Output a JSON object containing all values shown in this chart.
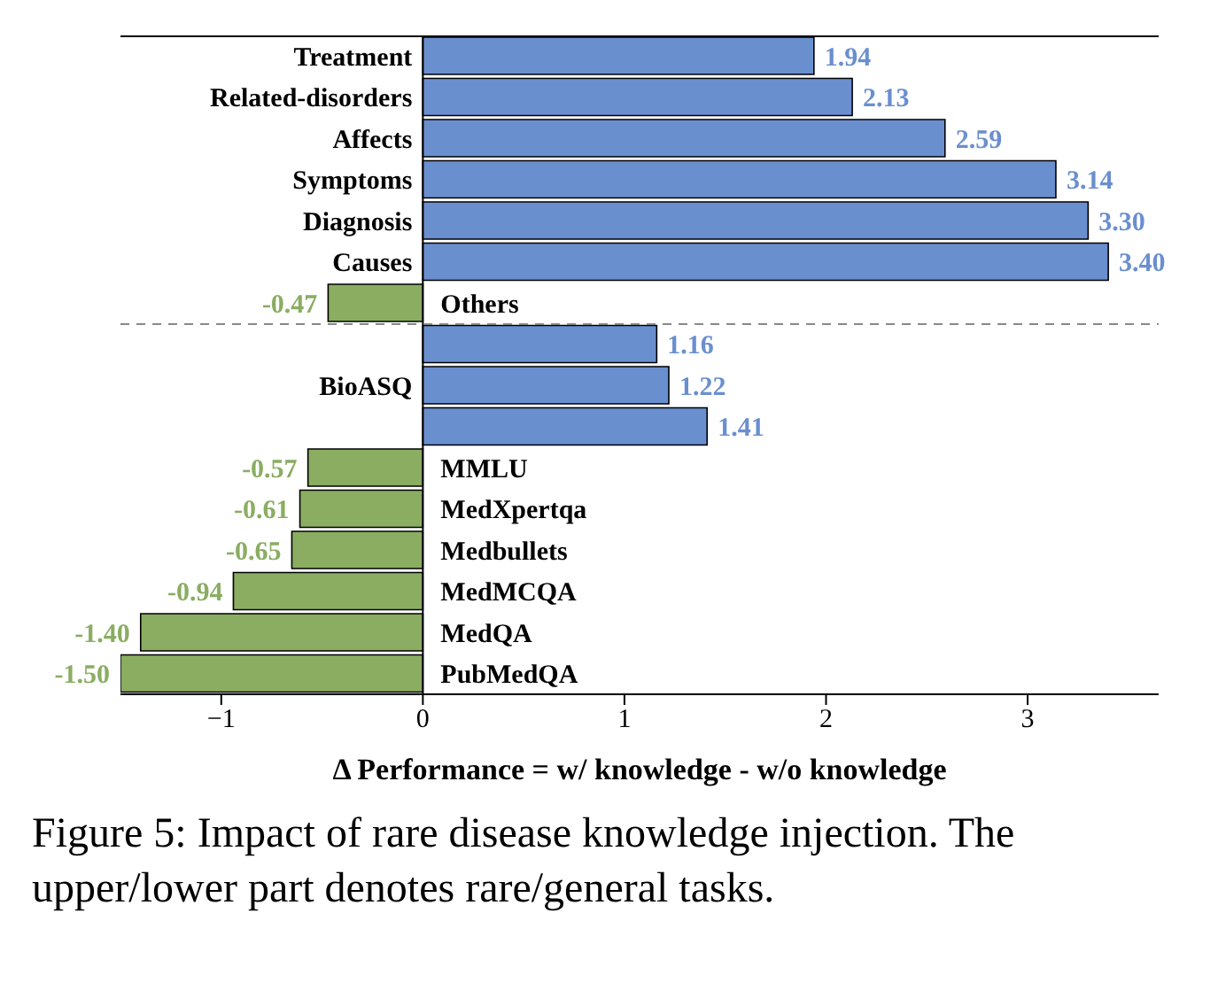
{
  "chart_data": {
    "type": "bar",
    "orientation": "horizontal",
    "categories": [
      "Treatment",
      "Related-disorders",
      "Affects",
      "Symptoms",
      "Diagnosis",
      "Causes",
      "Others",
      null,
      "BioASQ",
      null,
      "MMLU",
      "MedXpertqa",
      "Medbullets",
      "MedMCQA",
      "MedQA",
      "PubMedQA"
    ],
    "values": [
      1.94,
      2.13,
      2.59,
      3.14,
      3.3,
      3.4,
      -0.47,
      1.16,
      1.22,
      1.41,
      -0.57,
      -0.61,
      -0.65,
      -0.94,
      -1.4,
      -1.5
    ],
    "colors": [
      "#6a8fcf",
      "#6a8fcf",
      "#6a8fcf",
      "#6a8fcf",
      "#6a8fcf",
      "#6a8fcf",
      "#8aad62",
      "#6a8fcf",
      "#6a8fcf",
      "#6a8fcf",
      "#8aad62",
      "#8aad62",
      "#8aad62",
      "#8aad62",
      "#8aad62",
      "#8aad62"
    ],
    "value_labels": [
      "1.94",
      "2.13",
      "2.59",
      "3.14",
      "3.30",
      "3.40",
      "-0.47",
      "1.16",
      "1.22",
      "1.41",
      "-0.57",
      "-0.61",
      "-0.65",
      "-0.94",
      "-1.40",
      "-1.50"
    ],
    "xlim": [
      -1.5,
      3.65
    ],
    "xticks": [
      {
        "value": -1,
        "label": "−1"
      },
      0,
      1,
      2,
      3
    ],
    "xlabel": "Δ Performance = w/ knowledge - w/o knowledge",
    "annotations": [
      "Figure 5: Impact of rare disease knowledge injection. The upper/lower part denotes rare/general tasks."
    ]
  }
}
